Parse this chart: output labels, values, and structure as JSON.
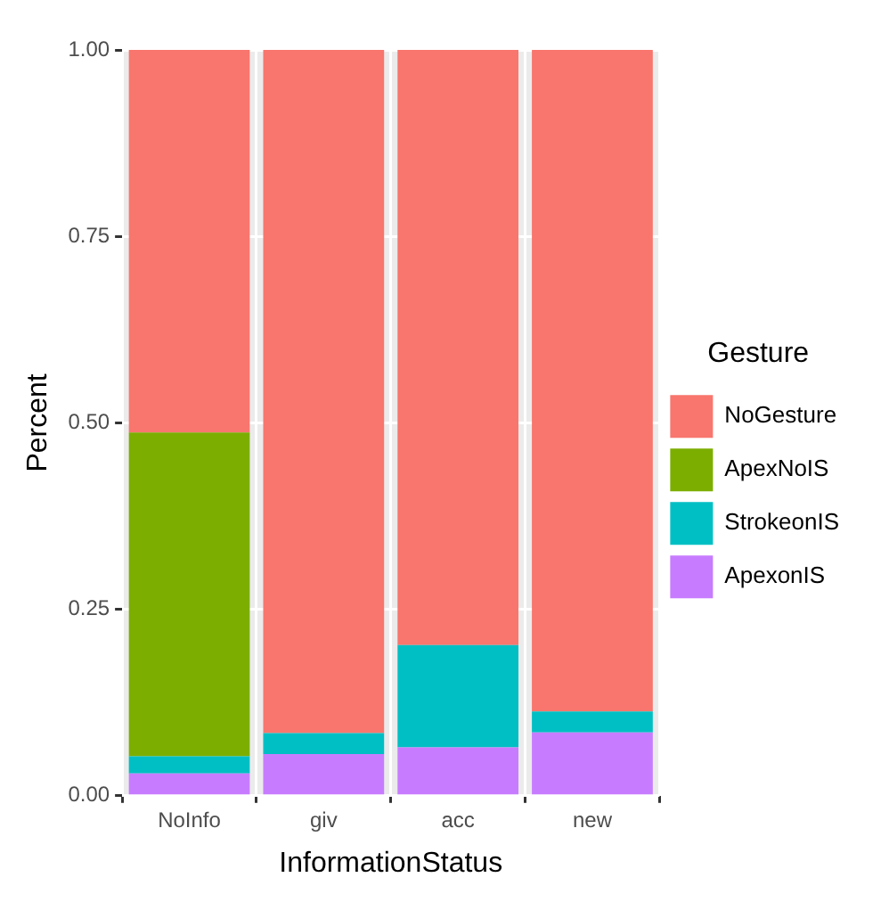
{
  "chart_data": {
    "type": "bar",
    "xlabel": "InformationStatus",
    "ylabel": "Percent",
    "legend_title": "Gesture",
    "categories": [
      "NoInfo",
      "giv",
      "acc",
      "new"
    ],
    "stacked": true,
    "series": [
      {
        "name": "ApexonIS",
        "color": "#c77cff",
        "values": [
          0.03,
          0.056,
          0.065,
          0.085
        ]
      },
      {
        "name": "StrokeonIS",
        "color": "#00bfc4",
        "values": [
          0.023,
          0.028,
          0.137,
          0.028
        ]
      },
      {
        "name": "ApexNoIS",
        "color": "#7cae00",
        "values": [
          0.434,
          0,
          0,
          0
        ]
      },
      {
        "name": "NoGesture",
        "color": "#f8766d",
        "values": [
          0.513,
          0.916,
          0.798,
          0.887
        ]
      }
    ],
    "ylim": [
      0,
      1
    ],
    "yticks": [
      {
        "value": 0,
        "label": "0.00"
      },
      {
        "value": 0.25,
        "label": "0.25"
      },
      {
        "value": 0.5,
        "label": "0.50"
      },
      {
        "value": 0.75,
        "label": "0.75"
      },
      {
        "value": 1,
        "label": "1.00"
      }
    ],
    "grid": true,
    "legend": "right"
  }
}
